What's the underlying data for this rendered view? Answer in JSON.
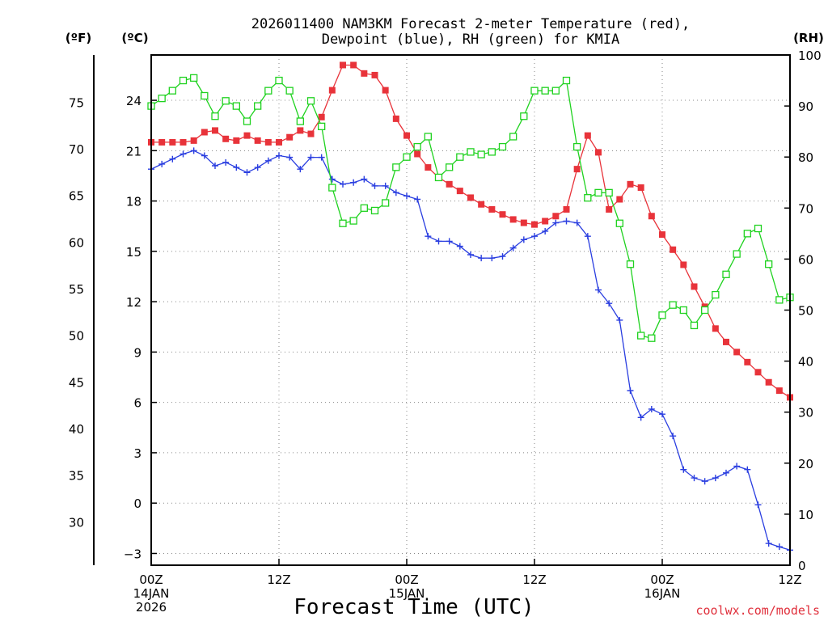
{
  "chart_data": {
    "type": "line",
    "title_line1": "2026011400 NAM3KM Forecast 2-meter Temperature (red),",
    "title_line2": "Dewpoint (blue), RH (green) for KMIA",
    "xlabel": "Forecast Time (UTC)",
    "credit": "coolwx.com/models",
    "units": {
      "fahrenheit": "(ºF)",
      "celsius": "(ºC)",
      "rh": "(RH)"
    },
    "x_range_hours": [
      0,
      60
    ],
    "celsius_range": [
      -3.7,
      26.7
    ],
    "rh_range": [
      0,
      100
    ],
    "celsius_ticks": [
      "24",
      "21",
      "18",
      "15",
      "12",
      "9",
      "6",
      "3",
      "0",
      "−3"
    ],
    "celsius_tick_values": [
      24,
      21,
      18,
      15,
      12,
      9,
      6,
      3,
      0,
      -3
    ],
    "fahrenheit_ticks": [
      "75",
      "70",
      "65",
      "60",
      "55",
      "50",
      "45",
      "40",
      "35",
      "30"
    ],
    "fahrenheit_tick_values": [
      75,
      70,
      65,
      60,
      55,
      50,
      45,
      40,
      35,
      30
    ],
    "rh_ticks": [
      "100",
      "90",
      "80",
      "70",
      "60",
      "50",
      "40",
      "30",
      "20",
      "10",
      "0"
    ],
    "rh_tick_values": [
      100,
      90,
      80,
      70,
      60,
      50,
      40,
      30,
      20,
      10,
      0
    ],
    "x_ticks": [
      {
        "hour": 0,
        "lines": [
          "00Z",
          "14JAN",
          "2026"
        ]
      },
      {
        "hour": 12,
        "lines": [
          "12Z"
        ]
      },
      {
        "hour": 24,
        "lines": [
          "00Z",
          "15JAN"
        ]
      },
      {
        "hour": 36,
        "lines": [
          "12Z"
        ]
      },
      {
        "hour": 48,
        "lines": [
          "00Z",
          "16JAN"
        ]
      },
      {
        "hour": 60,
        "lines": [
          "12Z"
        ]
      }
    ],
    "colors": {
      "temperature": "#e8333a",
      "dewpoint": "#2a3ee0",
      "rh": "#1fd21f"
    },
    "series": [
      {
        "name": "Temperature",
        "unit": "C",
        "x": [
          0,
          1,
          2,
          3,
          4,
          5,
          6,
          7,
          8,
          9,
          10,
          11,
          12,
          13,
          14,
          15,
          16,
          17,
          18,
          19,
          20,
          21,
          22,
          23,
          24,
          25,
          26,
          27,
          28,
          29,
          30,
          31,
          32,
          33,
          34,
          35,
          36,
          37,
          38,
          39,
          40,
          41,
          42,
          43,
          44,
          45,
          46,
          47,
          48,
          49,
          50,
          51,
          52,
          53,
          54,
          55,
          56,
          57,
          58,
          59,
          60
        ],
        "values": [
          21.5,
          21.5,
          21.5,
          21.5,
          21.6,
          22.1,
          22.2,
          21.7,
          21.6,
          21.9,
          21.6,
          21.5,
          21.5,
          21.8,
          22.2,
          22.0,
          23.0,
          24.6,
          26.1,
          26.1,
          25.6,
          25.5,
          24.6,
          22.9,
          21.9,
          20.8,
          20.0,
          19.4,
          19.0,
          18.6,
          18.2,
          17.8,
          17.5,
          17.2,
          16.9,
          16.7,
          16.6,
          16.8,
          17.1,
          17.5,
          19.9,
          21.9,
          20.9,
          17.5,
          18.1,
          19.0,
          18.8,
          17.1,
          16.0,
          15.1,
          14.2,
          12.9,
          11.7,
          10.4,
          9.6,
          9.0,
          8.4,
          7.8,
          7.2,
          6.7,
          6.3
        ]
      },
      {
        "name": "Dewpoint",
        "unit": "C",
        "x": [
          0,
          1,
          2,
          3,
          4,
          5,
          6,
          7,
          8,
          9,
          10,
          11,
          12,
          13,
          14,
          15,
          16,
          17,
          18,
          19,
          20,
          21,
          22,
          23,
          24,
          25,
          26,
          27,
          28,
          29,
          30,
          31,
          32,
          33,
          34,
          35,
          36,
          37,
          38,
          39,
          40,
          41,
          42,
          43,
          44,
          45,
          46,
          47,
          48,
          49,
          50,
          51,
          52,
          53,
          54,
          55,
          56,
          57,
          58,
          59,
          60
        ],
        "values": [
          19.9,
          20.2,
          20.5,
          20.8,
          21.0,
          20.7,
          20.1,
          20.3,
          20.0,
          19.7,
          20.0,
          20.4,
          20.7,
          20.6,
          19.9,
          20.6,
          20.6,
          19.3,
          19.0,
          19.1,
          19.3,
          18.9,
          18.9,
          18.5,
          18.3,
          18.1,
          15.9,
          15.6,
          15.6,
          15.3,
          14.8,
          14.6,
          14.6,
          14.7,
          15.2,
          15.7,
          15.9,
          16.2,
          16.7,
          16.8,
          16.7,
          15.9,
          12.7,
          11.9,
          10.9,
          6.7,
          5.1,
          5.6,
          5.3,
          4.0,
          2.0,
          1.5,
          1.3,
          1.5,
          1.8,
          2.2,
          2.0,
          -0.1,
          -2.4,
          -2.6,
          -2.8
        ]
      },
      {
        "name": "RH",
        "unit": "%",
        "x": [
          0,
          1,
          2,
          3,
          4,
          5,
          6,
          7,
          8,
          9,
          10,
          11,
          12,
          13,
          14,
          15,
          16,
          17,
          18,
          19,
          20,
          21,
          22,
          23,
          24,
          25,
          26,
          27,
          28,
          29,
          30,
          31,
          32,
          33,
          34,
          35,
          36,
          37,
          38,
          39,
          40,
          41,
          42,
          43,
          44,
          45,
          46,
          47,
          48,
          49,
          50,
          51,
          52,
          53,
          54,
          55,
          56,
          57,
          58,
          59,
          60
        ],
        "values": [
          90,
          91.5,
          93,
          95,
          95.5,
          92,
          88,
          91,
          90,
          87,
          90,
          93,
          95,
          93,
          87,
          91,
          86,
          74,
          67,
          67.5,
          70,
          69.5,
          71,
          78,
          80,
          82,
          84,
          76,
          78,
          80,
          81,
          80.5,
          81,
          82,
          84,
          88,
          93,
          93,
          93,
          95,
          82,
          72,
          73,
          73,
          67,
          59,
          45,
          44.5,
          49,
          51,
          50,
          47,
          50,
          53,
          57,
          61,
          65,
          66,
          59,
          52,
          52.5
        ]
      }
    ]
  }
}
